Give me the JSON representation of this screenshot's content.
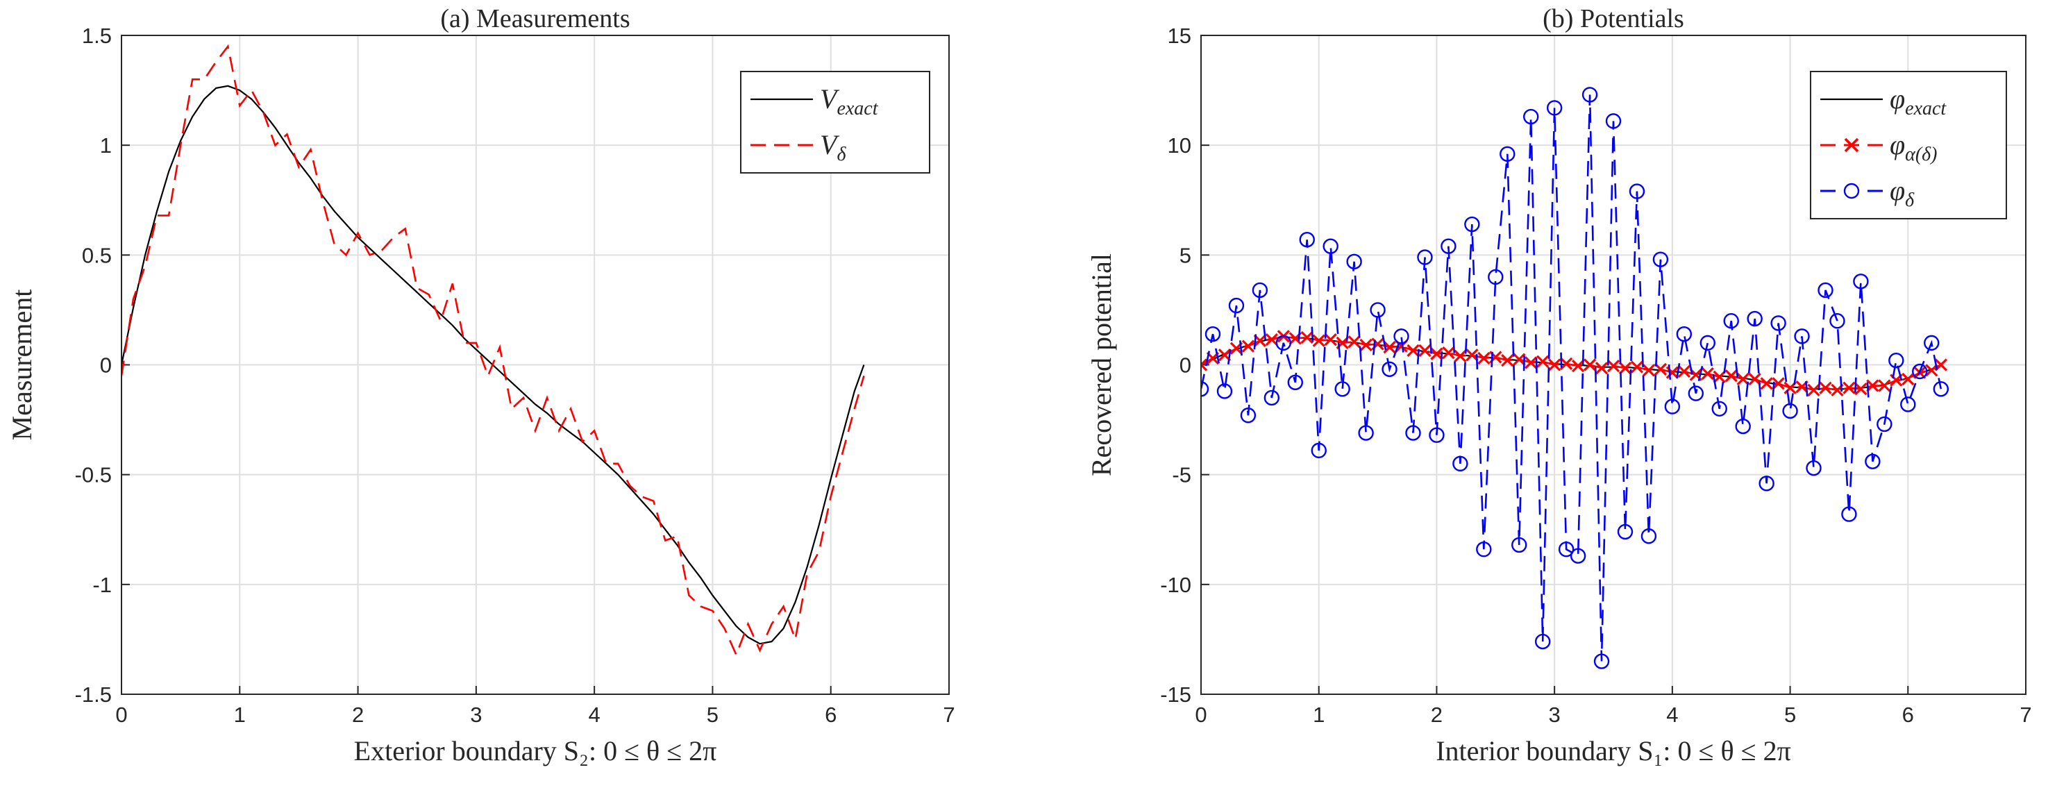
{
  "chart_data": [
    {
      "type": "line",
      "title": "(a) Measurements",
      "xlabel": "Exterior boundary S₂: 0 ≤ θ ≤ 2π",
      "ylabel": "Measurement",
      "xlim": [
        0,
        7
      ],
      "ylim": [
        -1.5,
        1.5
      ],
      "xticks": [
        0,
        1,
        2,
        3,
        4,
        5,
        6,
        7
      ],
      "yticks": [
        -1.5,
        -1,
        -0.5,
        0,
        0.5,
        1,
        1.5
      ],
      "grid": true,
      "legend": "northeast",
      "x": [
        0,
        0.1,
        0.2,
        0.3,
        0.4,
        0.5,
        0.6,
        0.7,
        0.8,
        0.9,
        1.0,
        1.1,
        1.2,
        1.3,
        1.4,
        1.5,
        1.6,
        1.7,
        1.8,
        1.9,
        2.0,
        2.1,
        2.2,
        2.3,
        2.4,
        2.5,
        2.6,
        2.7,
        2.8,
        2.9,
        3.0,
        3.1,
        3.2,
        3.3,
        3.4,
        3.5,
        3.6,
        3.7,
        3.8,
        3.9,
        4.0,
        4.1,
        4.2,
        4.3,
        4.4,
        4.5,
        4.6,
        4.7,
        4.8,
        4.9,
        5.0,
        5.1,
        5.2,
        5.3,
        5.4,
        5.5,
        5.6,
        5.7,
        5.8,
        5.9,
        6.0,
        6.1,
        6.2,
        6.28
      ],
      "series": [
        {
          "name": "V",
          "name_sub": "exact",
          "color": "#000000",
          "linestyle": "solid",
          "marker": "none",
          "values": [
            0,
            0.26,
            0.5,
            0.7,
            0.88,
            1.02,
            1.13,
            1.21,
            1.26,
            1.27,
            1.25,
            1.21,
            1.15,
            1.08,
            1.0,
            0.92,
            0.85,
            0.77,
            0.7,
            0.64,
            0.58,
            0.53,
            0.48,
            0.43,
            0.38,
            0.33,
            0.28,
            0.23,
            0.18,
            0.12,
            0.07,
            0.02,
            -0.03,
            -0.08,
            -0.13,
            -0.18,
            -0.22,
            -0.27,
            -0.31,
            -0.35,
            -0.4,
            -0.45,
            -0.5,
            -0.56,
            -0.62,
            -0.68,
            -0.75,
            -0.82,
            -0.9,
            -0.97,
            -1.05,
            -1.12,
            -1.19,
            -1.24,
            -1.27,
            -1.26,
            -1.2,
            -1.08,
            -0.92,
            -0.73,
            -0.52,
            -0.32,
            -0.12,
            0
          ]
        },
        {
          "name": "V",
          "name_sub": "δ",
          "color": "#ff0000",
          "linestyle": "dashed",
          "marker": "none",
          "values": [
            -0.05,
            0.3,
            0.45,
            0.68,
            0.68,
            1.0,
            1.3,
            1.3,
            1.38,
            1.45,
            1.18,
            1.25,
            1.15,
            1.0,
            1.05,
            0.9,
            0.98,
            0.75,
            0.55,
            0.5,
            0.6,
            0.5,
            0.52,
            0.58,
            0.62,
            0.35,
            0.32,
            0.2,
            0.37,
            0.1,
            0.1,
            -0.05,
            0.08,
            -0.2,
            -0.15,
            -0.3,
            -0.15,
            -0.3,
            -0.2,
            -0.35,
            -0.3,
            -0.45,
            -0.45,
            -0.55,
            -0.6,
            -0.62,
            -0.8,
            -0.78,
            -1.05,
            -1.1,
            -1.12,
            -1.2,
            -1.32,
            -1.18,
            -1.3,
            -1.18,
            -1.1,
            -1.25,
            -0.95,
            -0.85,
            -0.6,
            -0.4,
            -0.2,
            -0.05
          ]
        }
      ]
    },
    {
      "type": "line",
      "title": "(b) Potentials",
      "xlabel": "Interior boundary S₁: 0 ≤ θ ≤ 2π",
      "ylabel": "Recovered potential",
      "xlim": [
        0,
        7
      ],
      "ylim": [
        -15,
        15
      ],
      "xticks": [
        0,
        1,
        2,
        3,
        4,
        5,
        6,
        7
      ],
      "yticks": [
        -15,
        -10,
        -5,
        0,
        5,
        10,
        15
      ],
      "grid": true,
      "legend": "northeast",
      "x": [
        0,
        0.1,
        0.2,
        0.3,
        0.4,
        0.5,
        0.6,
        0.7,
        0.8,
        0.9,
        1.0,
        1.1,
        1.2,
        1.3,
        1.4,
        1.5,
        1.6,
        1.7,
        1.8,
        1.9,
        2.0,
        2.1,
        2.2,
        2.3,
        2.4,
        2.5,
        2.6,
        2.7,
        2.8,
        2.9,
        3.0,
        3.1,
        3.2,
        3.3,
        3.4,
        3.5,
        3.6,
        3.7,
        3.8,
        3.9,
        4.0,
        4.1,
        4.2,
        4.3,
        4.4,
        4.5,
        4.6,
        4.7,
        4.8,
        4.9,
        5.0,
        5.1,
        5.2,
        5.3,
        5.4,
        5.5,
        5.6,
        5.7,
        5.8,
        5.9,
        6.0,
        6.1,
        6.2,
        6.28
      ],
      "series": [
        {
          "name": "φ",
          "name_sub": "exact",
          "color": "#000000",
          "linestyle": "solid",
          "marker": "none",
          "values": [
            0,
            0.25,
            0.5,
            0.7,
            0.9,
            1.05,
            1.2,
            1.25,
            1.25,
            1.2,
            1.15,
            1.1,
            1.05,
            1.0,
            0.95,
            0.9,
            0.85,
            0.8,
            0.7,
            0.6,
            0.55,
            0.5,
            0.45,
            0.4,
            0.35,
            0.3,
            0.25,
            0.2,
            0.15,
            0.1,
            0.05,
            0,
            0,
            -0.05,
            -0.1,
            -0.1,
            -0.1,
            -0.15,
            -0.2,
            -0.25,
            -0.3,
            -0.35,
            -0.4,
            -0.45,
            -0.5,
            -0.55,
            -0.6,
            -0.7,
            -0.8,
            -0.9,
            -1.0,
            -1.05,
            -1.1,
            -1.1,
            -1.1,
            -1.1,
            -1.05,
            -1.0,
            -0.9,
            -0.75,
            -0.6,
            -0.4,
            -0.2,
            0
          ]
        },
        {
          "name": "φ",
          "name_sub": "α(δ)",
          "color": "#ff0000",
          "linestyle": "dashed",
          "marker": "x",
          "values": [
            0,
            0.3,
            0.45,
            0.75,
            0.85,
            1.1,
            1.15,
            1.3,
            1.2,
            1.25,
            1.1,
            1.15,
            1.0,
            1.05,
            0.9,
            0.95,
            0.8,
            0.85,
            0.65,
            0.65,
            0.5,
            0.55,
            0.4,
            0.45,
            0.3,
            0.35,
            0.2,
            0.25,
            0.1,
            0.15,
            0,
            0.05,
            -0.05,
            0,
            -0.15,
            -0.05,
            -0.15,
            -0.1,
            -0.25,
            -0.2,
            -0.35,
            -0.3,
            -0.45,
            -0.4,
            -0.55,
            -0.5,
            -0.65,
            -0.65,
            -0.85,
            -0.85,
            -1.05,
            -1.0,
            -1.15,
            -1.05,
            -1.15,
            -1.05,
            -1.1,
            -0.95,
            -0.95,
            -0.7,
            -0.65,
            -0.35,
            -0.25,
            0
          ]
        },
        {
          "name": "φ",
          "name_sub": "δ",
          "color": "#0000ff",
          "linestyle": "dashed",
          "marker": "o",
          "values": [
            -1.1,
            1.4,
            -1.2,
            2.7,
            -2.3,
            3.4,
            -1.5,
            1.0,
            -0.8,
            5.7,
            -3.9,
            5.4,
            -1.1,
            4.7,
            -3.1,
            2.5,
            -0.2,
            1.3,
            -3.1,
            4.9,
            -3.2,
            5.4,
            -4.5,
            6.4,
            -8.4,
            4.0,
            9.6,
            -8.2,
            11.3,
            -12.6,
            11.7,
            -8.4,
            -8.7,
            12.3,
            -13.5,
            11.1,
            -7.6,
            7.9,
            -7.8,
            4.8,
            -1.9,
            1.4,
            -1.3,
            1.0,
            -2.0,
            2.0,
            -2.8,
            2.1,
            -5.4,
            1.9,
            -2.1,
            1.3,
            -4.7,
            3.4,
            2.0,
            -6.8,
            3.8,
            -4.4,
            -2.7,
            0.2,
            -1.8,
            -0.3,
            1.0,
            -1.1
          ]
        }
      ]
    }
  ]
}
